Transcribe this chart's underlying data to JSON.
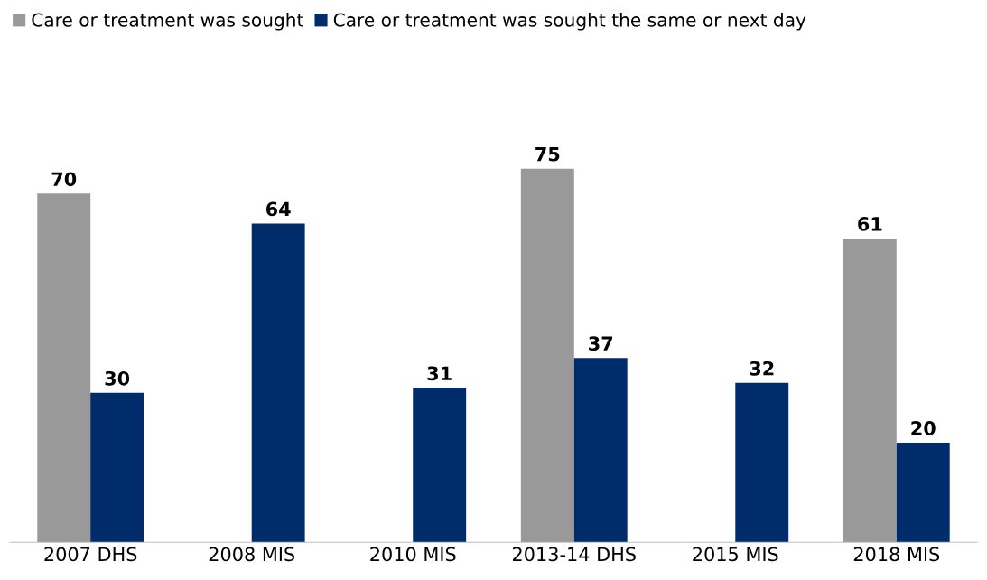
{
  "chart_data": {
    "type": "bar",
    "categories": [
      "2007 DHS",
      "2008 MIS",
      "2010 MIS",
      "2013-14 DHS",
      "2015 MIS",
      "2018 MIS"
    ],
    "series": [
      {
        "name": "Care or treatment was sought",
        "color": "#999999",
        "values": [
          70,
          null,
          null,
          75,
          null,
          61
        ]
      },
      {
        "name": "Care or treatment was sought the same or next day",
        "color": "#002c6b",
        "values": [
          30,
          64,
          31,
          37,
          32,
          20
        ]
      }
    ],
    "data_labels": true,
    "legend": "top left",
    "grid": false
  }
}
